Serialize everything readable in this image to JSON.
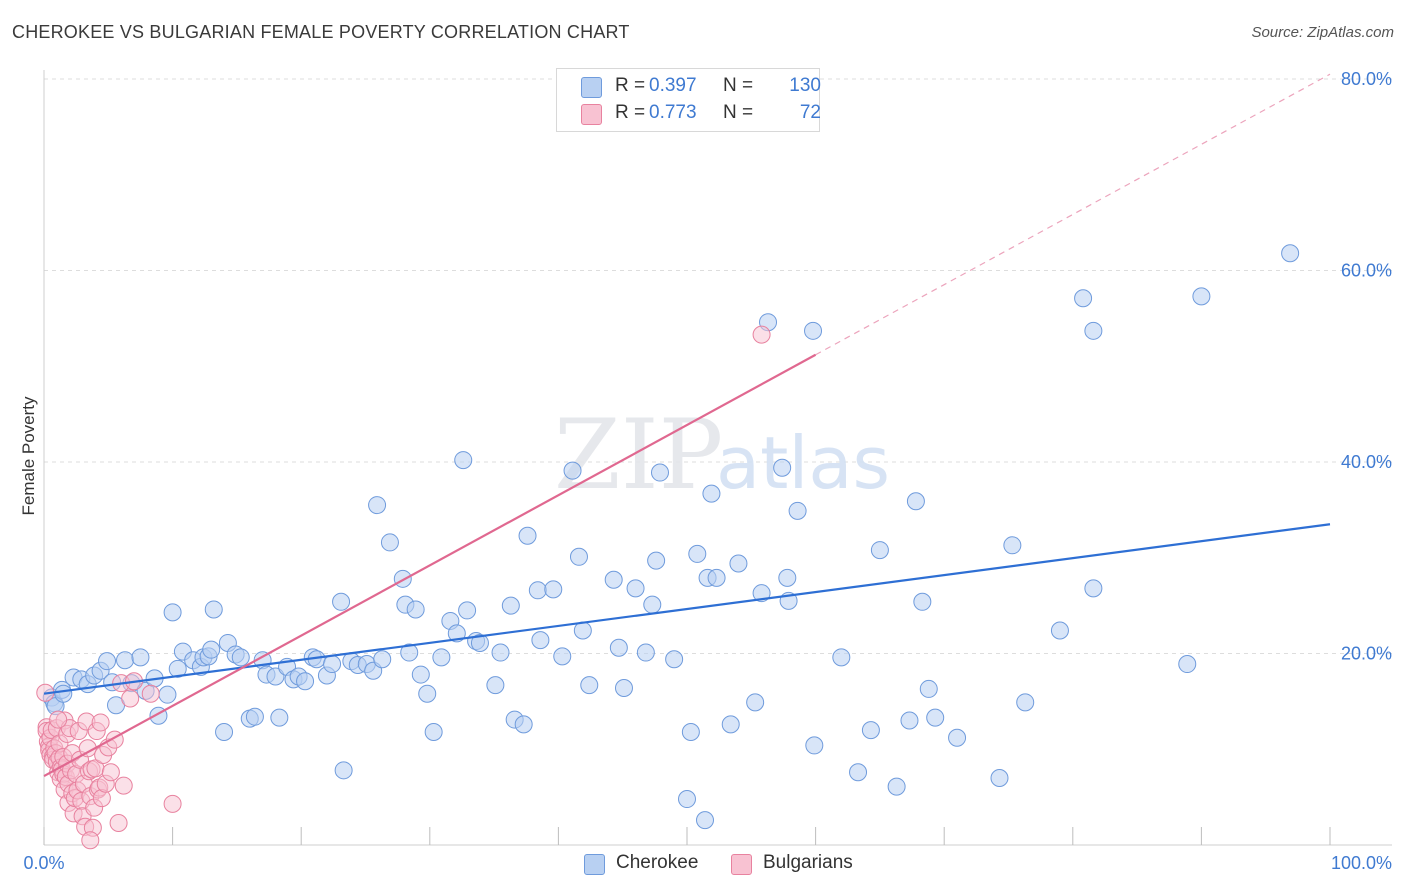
{
  "title": "CHEROKEE VS BULGARIAN FEMALE POVERTY CORRELATION CHART",
  "source": "Source: ZipAtlas.com",
  "watermark": {
    "zip": "ZIP",
    "atlas": "atlas"
  },
  "colors": {
    "cherokee_fill": "#b8d0f2",
    "cherokee_stroke": "#6f9bdc",
    "cherokee_line": "#2e6fd4",
    "bulgarian_fill": "#f8c2d2",
    "bulgarian_stroke": "#e8829f",
    "bulgarian_line": "#e06890",
    "axis_label": "#3f7ad1",
    "grid": "#dddddd"
  },
  "legend": {
    "items": [
      {
        "r_label": "R =",
        "r_value": "0.397",
        "n_label": "N =",
        "n_value": "130"
      },
      {
        "r_label": "R =",
        "r_value": "0.773",
        "n_label": "N =",
        "n_value": "72"
      }
    ]
  },
  "bottom_legend": [
    "Cherokee",
    "Bulgarians"
  ],
  "chart_data": {
    "type": "scatter",
    "title": "CHEROKEE VS BULGARIAN FEMALE POVERTY CORRELATION CHART",
    "xlabel": "",
    "ylabel": "Female Poverty",
    "xlim": [
      0,
      100
    ],
    "ylim": [
      0,
      80
    ],
    "x_tick_labels": [
      "0.0%",
      "100.0%"
    ],
    "y_ticks": [
      20,
      40,
      60,
      80
    ],
    "y_tick_labels": [
      "20.0%",
      "40.0%",
      "60.0%",
      "80.0%"
    ],
    "grid": true,
    "series": [
      {
        "name": "Cherokee",
        "R": 0.397,
        "N": 130,
        "trend": {
          "x": [
            0,
            100
          ],
          "y": [
            15.8,
            33.5
          ]
        },
        "points": [
          [
            0.6,
            15.4
          ],
          [
            0.8,
            14.8
          ],
          [
            0.9,
            14.5
          ],
          [
            1.4,
            16.2
          ],
          [
            1.5,
            15.8
          ],
          [
            2.3,
            17.5
          ],
          [
            2.9,
            17.3
          ],
          [
            3.4,
            16.8
          ],
          [
            3.9,
            17.7
          ],
          [
            4.4,
            18.2
          ],
          [
            4.9,
            19.2
          ],
          [
            5.3,
            17.0
          ],
          [
            5.6,
            14.6
          ],
          [
            6.3,
            19.3
          ],
          [
            6.8,
            16.9
          ],
          [
            7.5,
            19.6
          ],
          [
            7.9,
            16.1
          ],
          [
            8.6,
            17.4
          ],
          [
            8.9,
            13.5
          ],
          [
            9.6,
            15.7
          ],
          [
            10.0,
            24.3
          ],
          [
            10.4,
            18.4
          ],
          [
            10.8,
            20.2
          ],
          [
            11.6,
            19.3
          ],
          [
            12.2,
            18.6
          ],
          [
            12.4,
            19.6
          ],
          [
            12.8,
            19.7
          ],
          [
            13.0,
            20.4
          ],
          [
            13.2,
            24.6
          ],
          [
            14.0,
            11.8
          ],
          [
            14.3,
            21.1
          ],
          [
            14.9,
            19.9
          ],
          [
            15.3,
            19.6
          ],
          [
            16.0,
            13.2
          ],
          [
            16.4,
            13.4
          ],
          [
            17.0,
            19.3
          ],
          [
            17.3,
            17.8
          ],
          [
            18.0,
            17.6
          ],
          [
            18.3,
            13.3
          ],
          [
            18.9,
            18.6
          ],
          [
            19.4,
            17.3
          ],
          [
            19.8,
            17.6
          ],
          [
            20.3,
            17.1
          ],
          [
            20.9,
            19.6
          ],
          [
            21.2,
            19.4
          ],
          [
            22.0,
            17.7
          ],
          [
            22.4,
            18.9
          ],
          [
            23.1,
            25.4
          ],
          [
            23.3,
            7.8
          ],
          [
            23.9,
            19.2
          ],
          [
            24.4,
            18.8
          ],
          [
            25.1,
            18.9
          ],
          [
            25.6,
            18.2
          ],
          [
            25.9,
            35.5
          ],
          [
            26.3,
            19.4
          ],
          [
            26.9,
            31.6
          ],
          [
            27.9,
            27.8
          ],
          [
            28.1,
            25.1
          ],
          [
            28.4,
            20.1
          ],
          [
            28.9,
            24.6
          ],
          [
            29.3,
            17.8
          ],
          [
            29.8,
            15.8
          ],
          [
            30.3,
            11.8
          ],
          [
            30.9,
            19.6
          ],
          [
            31.6,
            23.4
          ],
          [
            32.1,
            22.1
          ],
          [
            32.6,
            40.2
          ],
          [
            32.9,
            24.5
          ],
          [
            33.6,
            21.3
          ],
          [
            33.9,
            21.1
          ],
          [
            35.1,
            16.7
          ],
          [
            35.5,
            20.1
          ],
          [
            36.3,
            25.0
          ],
          [
            36.6,
            13.1
          ],
          [
            37.3,
            12.6
          ],
          [
            37.6,
            32.3
          ],
          [
            38.4,
            26.6
          ],
          [
            38.6,
            21.4
          ],
          [
            39.6,
            26.7
          ],
          [
            40.3,
            19.7
          ],
          [
            41.1,
            39.1
          ],
          [
            41.6,
            30.1
          ],
          [
            41.9,
            22.4
          ],
          [
            42.4,
            16.7
          ],
          [
            44.3,
            27.7
          ],
          [
            44.7,
            20.6
          ],
          [
            45.1,
            16.4
          ],
          [
            46.0,
            26.8
          ],
          [
            46.8,
            20.1
          ],
          [
            47.3,
            25.1
          ],
          [
            47.6,
            29.7
          ],
          [
            47.9,
            38.9
          ],
          [
            49.0,
            19.4
          ],
          [
            50.3,
            11.8
          ],
          [
            50.8,
            30.4
          ],
          [
            51.4,
            2.6
          ],
          [
            51.6,
            27.9
          ],
          [
            51.9,
            36.7
          ],
          [
            52.3,
            27.9
          ],
          [
            53.4,
            12.6
          ],
          [
            54.0,
            29.4
          ],
          [
            55.3,
            14.9
          ],
          [
            55.8,
            26.3
          ],
          [
            56.3,
            54.6
          ],
          [
            57.4,
            39.4
          ],
          [
            57.8,
            27.9
          ],
          [
            57.9,
            25.5
          ],
          [
            58.6,
            34.9
          ],
          [
            59.8,
            53.7
          ],
          [
            59.9,
            10.4
          ],
          [
            62.0,
            19.6
          ],
          [
            63.3,
            7.6
          ],
          [
            64.3,
            12.0
          ],
          [
            65.0,
            30.8
          ],
          [
            66.3,
            6.1
          ],
          [
            67.3,
            13.0
          ],
          [
            67.8,
            35.9
          ],
          [
            68.3,
            25.4
          ],
          [
            68.8,
            16.3
          ],
          [
            69.3,
            13.3
          ],
          [
            71.0,
            11.2
          ],
          [
            74.3,
            7.0
          ],
          [
            75.3,
            31.3
          ],
          [
            76.3,
            14.9
          ],
          [
            79.0,
            22.4
          ],
          [
            80.8,
            57.1
          ],
          [
            81.6,
            26.8
          ],
          [
            81.6,
            53.7
          ],
          [
            88.9,
            18.9
          ],
          [
            90.0,
            57.3
          ],
          [
            96.9,
            61.8
          ],
          [
            50.0,
            4.8
          ]
        ]
      },
      {
        "name": "Bulgarians",
        "R": 0.773,
        "N": 72,
        "trend": {
          "x": [
            0,
            60
          ],
          "y": [
            7.2,
            51.2
          ]
        },
        "trend_extended": {
          "x": [
            60,
            100
          ],
          "y": [
            51.2,
            80.5
          ]
        },
        "points": [
          [
            0.1,
            15.9
          ],
          [
            0.2,
            12.3
          ],
          [
            0.2,
            11.9
          ],
          [
            0.3,
            10.8
          ],
          [
            0.4,
            10.3
          ],
          [
            0.4,
            9.9
          ],
          [
            0.5,
            9.4
          ],
          [
            0.5,
            11.2
          ],
          [
            0.6,
            12.0
          ],
          [
            0.7,
            9.2
          ],
          [
            0.7,
            8.9
          ],
          [
            0.8,
            10.1
          ],
          [
            0.9,
            9.6
          ],
          [
            1.0,
            8.7
          ],
          [
            1.0,
            12.2
          ],
          [
            1.1,
            7.6
          ],
          [
            1.2,
            9.1
          ],
          [
            1.2,
            10.6
          ],
          [
            1.3,
            8.1
          ],
          [
            1.3,
            6.9
          ],
          [
            1.4,
            7.9
          ],
          [
            1.5,
            7.4
          ],
          [
            1.5,
            9.2
          ],
          [
            1.6,
            13.0
          ],
          [
            1.6,
            5.8
          ],
          [
            1.7,
            7.1
          ],
          [
            1.8,
            8.5
          ],
          [
            1.8,
            11.6
          ],
          [
            1.9,
            6.4
          ],
          [
            1.9,
            4.4
          ],
          [
            2.0,
            12.2
          ],
          [
            2.1,
            7.8
          ],
          [
            2.2,
            5.4
          ],
          [
            2.2,
            9.6
          ],
          [
            2.3,
            3.3
          ],
          [
            2.4,
            4.9
          ],
          [
            2.5,
            7.4
          ],
          [
            2.6,
            5.7
          ],
          [
            2.7,
            11.9
          ],
          [
            2.8,
            8.9
          ],
          [
            2.9,
            4.6
          ],
          [
            3.0,
            3.0
          ],
          [
            3.1,
            6.4
          ],
          [
            3.2,
            1.9
          ],
          [
            3.3,
            12.9
          ],
          [
            3.4,
            10.1
          ],
          [
            3.5,
            7.7
          ],
          [
            3.6,
            5.1
          ],
          [
            3.7,
            7.9
          ],
          [
            3.8,
            1.8
          ],
          [
            3.9,
            3.9
          ],
          [
            4.0,
            8.0
          ],
          [
            4.1,
            11.9
          ],
          [
            4.2,
            5.8
          ],
          [
            4.3,
            6.0
          ],
          [
            4.4,
            12.8
          ],
          [
            4.5,
            4.9
          ],
          [
            4.6,
            9.4
          ],
          [
            4.8,
            6.4
          ],
          [
            5.0,
            10.2
          ],
          [
            5.2,
            7.6
          ],
          [
            5.5,
            11.0
          ],
          [
            5.8,
            2.3
          ],
          [
            6.0,
            16.9
          ],
          [
            6.2,
            6.2
          ],
          [
            6.7,
            15.3
          ],
          [
            7.0,
            17.1
          ],
          [
            8.3,
            15.8
          ],
          [
            10.0,
            4.3
          ],
          [
            55.8,
            53.3
          ],
          [
            3.6,
            0.5
          ],
          [
            1.1,
            13.1
          ]
        ]
      }
    ]
  }
}
